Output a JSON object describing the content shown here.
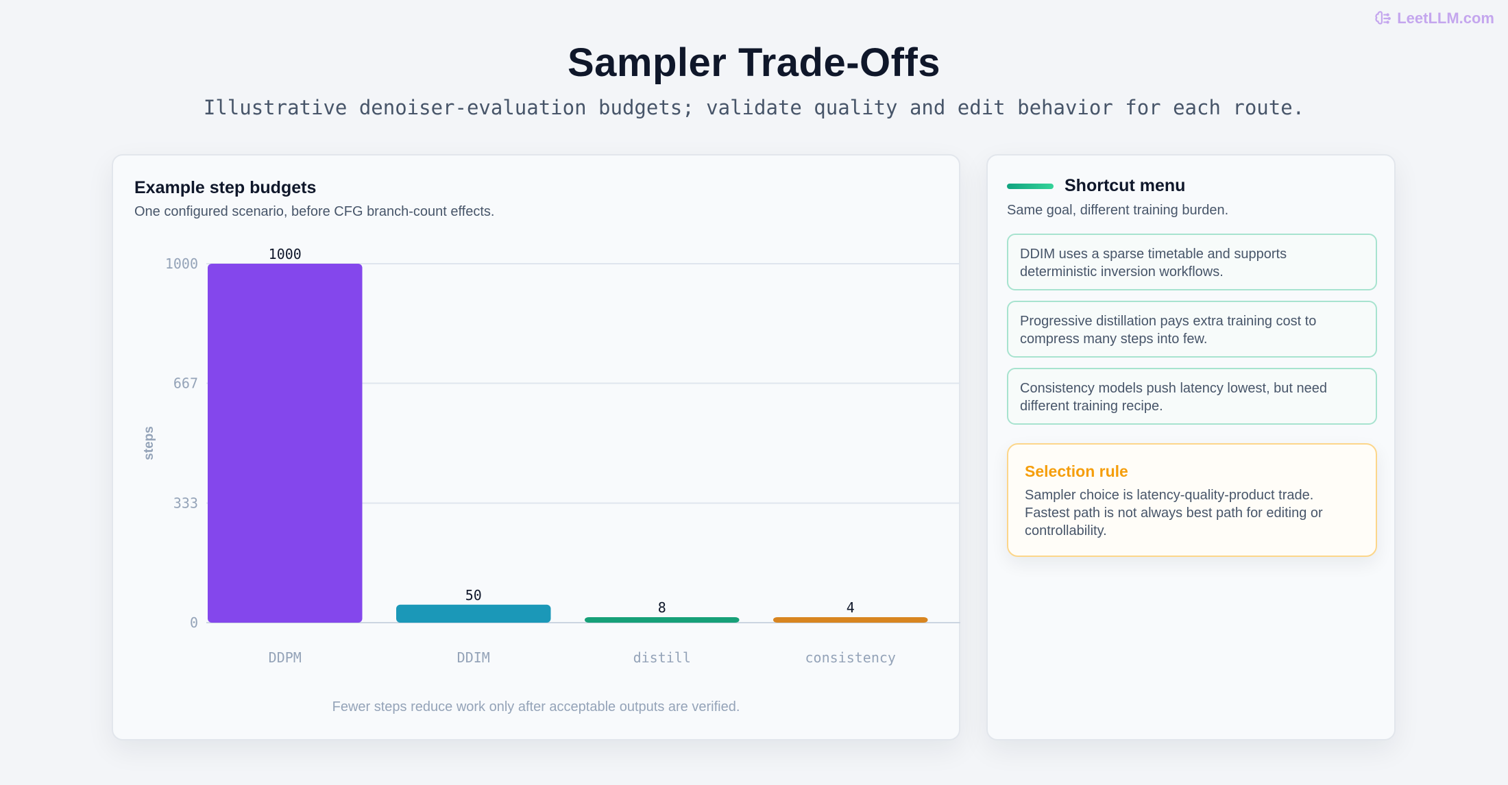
{
  "brand": {
    "text": "LeetLLM.com",
    "icon": "brain-icon"
  },
  "header": {
    "title": "Sampler Trade-Offs",
    "subtitle": "Illustrative denoiser-evaluation budgets; validate quality and edit behavior for each route."
  },
  "chart_card": {
    "title": "Example step budgets",
    "subtitle": "One configured scenario, before CFG branch-count effects.",
    "footnote": "Fewer steps reduce work only after acceptable outputs are verified."
  },
  "chart_data": {
    "type": "bar",
    "categories": [
      "DDPM",
      "DDIM",
      "distill",
      "consistency"
    ],
    "values": [
      1000,
      50,
      8,
      4
    ],
    "value_labels": [
      "1000",
      "50",
      "8",
      "4"
    ],
    "colors": [
      "#8447ec",
      "#1b98b8",
      "#17a078",
      "#d88520"
    ],
    "ylabel": "steps",
    "ylim": [
      0,
      1000
    ],
    "yticks": [
      0,
      333,
      667,
      1000
    ],
    "ytick_labels": [
      "0",
      "333",
      "667",
      "1000"
    ],
    "grid": true
  },
  "side": {
    "title": "Shortcut menu",
    "subtitle": "Same goal, different training burden.",
    "items": [
      "DDIM uses a sparse timetable and supports deterministic inversion workflows.",
      "Progressive distillation pays extra training cost to compress many steps into few.",
      "Consistency models push latency lowest, but need different training recipe."
    ],
    "rule": {
      "title": "Selection rule",
      "body": "Sampler choice is latency-quality-product trade. Fastest path is not always best path for editing or controllability."
    }
  }
}
